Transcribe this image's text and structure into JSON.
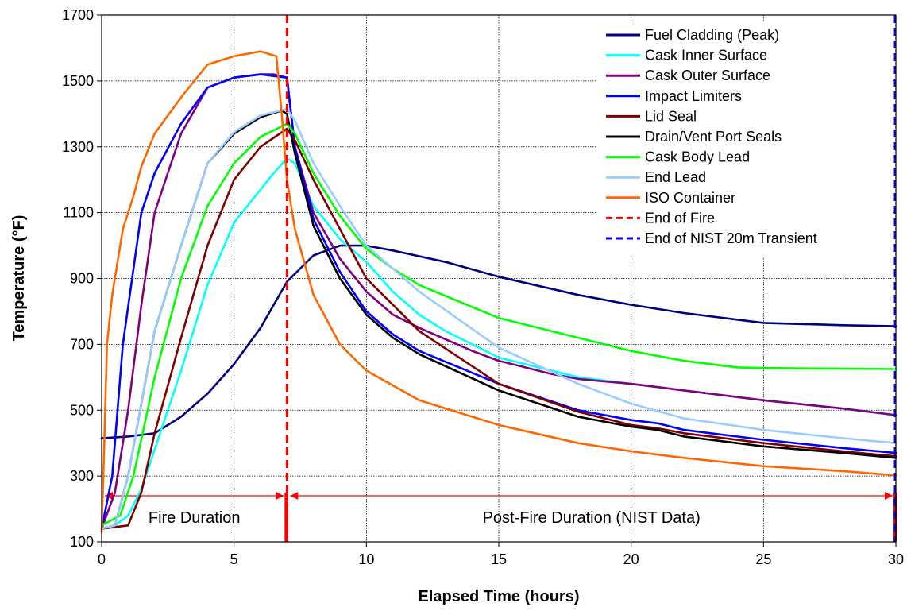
{
  "chart_data": {
    "type": "line",
    "xlabel": "Elapsed Time (hours)",
    "ylabel": "Temperature (°F)",
    "xlim": [
      0,
      30
    ],
    "ylim": [
      100,
      1700
    ],
    "xticks": [
      0,
      5,
      10,
      15,
      20,
      25,
      30
    ],
    "yticks": [
      100,
      300,
      500,
      700,
      900,
      1100,
      1300,
      1500,
      1700
    ],
    "grid": true,
    "legend_position": "top-right",
    "series": [
      {
        "name": "Fuel Cladding (Peak)",
        "color": "#000080",
        "dash": false,
        "points": [
          [
            0,
            415
          ],
          [
            1,
            420
          ],
          [
            2,
            430
          ],
          [
            3,
            480
          ],
          [
            4,
            550
          ],
          [
            5,
            640
          ],
          [
            6,
            750
          ],
          [
            7,
            890
          ],
          [
            8,
            970
          ],
          [
            9,
            1000
          ],
          [
            10,
            1000
          ],
          [
            11,
            985
          ],
          [
            13,
            950
          ],
          [
            15,
            905
          ],
          [
            18,
            850
          ],
          [
            20,
            820
          ],
          [
            22,
            795
          ],
          [
            25,
            765
          ],
          [
            28,
            758
          ],
          [
            30,
            755
          ]
        ]
      },
      {
        "name": "Cask Inner Surface",
        "color": "#00ffff",
        "dash": false,
        "points": [
          [
            0,
            140
          ],
          [
            0.5,
            150
          ],
          [
            1,
            180
          ],
          [
            1.5,
            260
          ],
          [
            2,
            380
          ],
          [
            3,
            620
          ],
          [
            4,
            880
          ],
          [
            5,
            1070
          ],
          [
            6,
            1170
          ],
          [
            6.5,
            1220
          ],
          [
            7,
            1265
          ],
          [
            7.3,
            1250
          ],
          [
            8,
            1120
          ],
          [
            9,
            1020
          ],
          [
            10,
            950
          ],
          [
            11,
            860
          ],
          [
            12,
            790
          ],
          [
            13,
            740
          ],
          [
            15,
            660
          ],
          [
            18,
            600
          ],
          [
            20,
            580
          ],
          [
            21,
            570
          ],
          [
            22,
            560
          ],
          [
            25,
            530
          ],
          [
            28,
            505
          ],
          [
            30,
            485
          ]
        ]
      },
      {
        "name": "Cask Outer Surface",
        "color": "#800080",
        "dash": false,
        "points": [
          [
            0,
            140
          ],
          [
            0.5,
            250
          ],
          [
            1,
            500
          ],
          [
            1.5,
            820
          ],
          [
            2,
            1100
          ],
          [
            2.5,
            1220
          ],
          [
            3,
            1340
          ],
          [
            4,
            1480
          ],
          [
            5,
            1510
          ],
          [
            6,
            1520
          ],
          [
            6.5,
            1520
          ],
          [
            7,
            1510
          ],
          [
            7.3,
            1300
          ],
          [
            8,
            1100
          ],
          [
            9,
            960
          ],
          [
            10,
            860
          ],
          [
            11,
            790
          ],
          [
            12,
            750
          ],
          [
            14,
            680
          ],
          [
            15,
            650
          ],
          [
            17,
            610
          ],
          [
            18,
            595
          ],
          [
            20,
            580
          ],
          [
            21,
            570
          ],
          [
            22,
            560
          ],
          [
            25,
            530
          ],
          [
            28,
            505
          ],
          [
            30,
            485
          ]
        ]
      },
      {
        "name": "Impact Limiters",
        "color": "#0000ff",
        "dash": false,
        "points": [
          [
            0,
            140
          ],
          [
            0.4,
            300
          ],
          [
            0.8,
            700
          ],
          [
            1.5,
            1100
          ],
          [
            2,
            1220
          ],
          [
            3,
            1370
          ],
          [
            4,
            1480
          ],
          [
            5,
            1510
          ],
          [
            6,
            1520
          ],
          [
            6.5,
            1515
          ],
          [
            7,
            1510
          ],
          [
            7.3,
            1300
          ],
          [
            8,
            1080
          ],
          [
            9,
            920
          ],
          [
            10,
            800
          ],
          [
            11,
            730
          ],
          [
            12,
            680
          ],
          [
            15,
            580
          ],
          [
            18,
            500
          ],
          [
            20,
            470
          ],
          [
            21,
            460
          ],
          [
            22,
            440
          ],
          [
            25,
            410
          ],
          [
            28,
            385
          ],
          [
            30,
            370
          ]
        ]
      },
      {
        "name": "Lid Seal",
        "color": "#800000",
        "dash": false,
        "points": [
          [
            0,
            140
          ],
          [
            1,
            150
          ],
          [
            1.5,
            250
          ],
          [
            2,
            430
          ],
          [
            3,
            720
          ],
          [
            4,
            1000
          ],
          [
            5,
            1200
          ],
          [
            6,
            1300
          ],
          [
            7,
            1355
          ],
          [
            7.3,
            1320
          ],
          [
            8,
            1200
          ],
          [
            9,
            1050
          ],
          [
            10,
            900
          ],
          [
            11,
            820
          ],
          [
            12,
            740
          ],
          [
            15,
            580
          ],
          [
            18,
            495
          ],
          [
            20,
            455
          ],
          [
            21,
            445
          ],
          [
            22,
            430
          ],
          [
            25,
            400
          ],
          [
            28,
            375
          ],
          [
            30,
            360
          ]
        ]
      },
      {
        "name": "Drain/Vent Port Seals",
        "color": "#000000",
        "dash": false,
        "points": [
          [
            0,
            140
          ],
          [
            0.5,
            150
          ],
          [
            1,
            300
          ],
          [
            1.5,
            520
          ],
          [
            2,
            740
          ],
          [
            3,
            1000
          ],
          [
            4,
            1250
          ],
          [
            5,
            1340
          ],
          [
            6,
            1390
          ],
          [
            6.8,
            1410
          ],
          [
            7,
            1400
          ],
          [
            7.3,
            1280
          ],
          [
            8,
            1060
          ],
          [
            9,
            900
          ],
          [
            10,
            790
          ],
          [
            11,
            720
          ],
          [
            12,
            670
          ],
          [
            15,
            560
          ],
          [
            18,
            480
          ],
          [
            20,
            450
          ],
          [
            21,
            440
          ],
          [
            22,
            420
          ],
          [
            25,
            390
          ],
          [
            28,
            370
          ],
          [
            30,
            355
          ]
        ]
      },
      {
        "name": "Cask Body Lead",
        "color": "#00ff00",
        "dash": false,
        "points": [
          [
            0,
            150
          ],
          [
            0.7,
            180
          ],
          [
            1.2,
            300
          ],
          [
            2,
            600
          ],
          [
            3,
            900
          ],
          [
            4,
            1120
          ],
          [
            5,
            1250
          ],
          [
            6,
            1330
          ],
          [
            7,
            1370
          ],
          [
            7.3,
            1340
          ],
          [
            8,
            1220
          ],
          [
            9,
            1090
          ],
          [
            10,
            990
          ],
          [
            11,
            930
          ],
          [
            12,
            880
          ],
          [
            15,
            780
          ],
          [
            18,
            720
          ],
          [
            20,
            680
          ],
          [
            22,
            650
          ],
          [
            24,
            630
          ],
          [
            25,
            628
          ],
          [
            28,
            626
          ],
          [
            30,
            625
          ]
        ]
      },
      {
        "name": "End Lead",
        "color": "#99ccff",
        "dash": false,
        "points": [
          [
            0,
            140
          ],
          [
            0.5,
            150
          ],
          [
            1,
            300
          ],
          [
            1.5,
            520
          ],
          [
            2,
            740
          ],
          [
            3,
            1000
          ],
          [
            4,
            1250
          ],
          [
            5,
            1345
          ],
          [
            6,
            1395
          ],
          [
            7,
            1415
          ],
          [
            7.3,
            1380
          ],
          [
            8,
            1250
          ],
          [
            9,
            1120
          ],
          [
            10,
            1000
          ],
          [
            11,
            930
          ],
          [
            12,
            860
          ],
          [
            15,
            690
          ],
          [
            18,
            580
          ],
          [
            20,
            520
          ],
          [
            22,
            475
          ],
          [
            25,
            440
          ],
          [
            28,
            415
          ],
          [
            30,
            400
          ]
        ]
      },
      {
        "name": "ISO Container",
        "color": "#ff6600",
        "dash": false,
        "points": [
          [
            0,
            130
          ],
          [
            0.1,
            400
          ],
          [
            0.2,
            700
          ],
          [
            0.4,
            850
          ],
          [
            0.8,
            1050
          ],
          [
            1.2,
            1150
          ],
          [
            1.5,
            1240
          ],
          [
            2,
            1340
          ],
          [
            3,
            1450
          ],
          [
            4,
            1550
          ],
          [
            5,
            1575
          ],
          [
            6,
            1590
          ],
          [
            6.4,
            1580
          ],
          [
            6.6,
            1575
          ],
          [
            6.8,
            1400
          ],
          [
            7,
            1200
          ],
          [
            7.3,
            1050
          ],
          [
            8,
            850
          ],
          [
            9,
            700
          ],
          [
            10,
            620
          ],
          [
            12,
            530
          ],
          [
            15,
            455
          ],
          [
            18,
            400
          ],
          [
            20,
            375
          ],
          [
            22,
            355
          ],
          [
            25,
            330
          ],
          [
            28,
            315
          ],
          [
            30,
            302
          ]
        ]
      }
    ],
    "vlines": [
      {
        "name": "End of Fire",
        "x": 7.0,
        "color": "#ff0000",
        "dash": true
      },
      {
        "name": "End of NIST 20m Transient",
        "x": 30.0,
        "color": "#0000ff",
        "dash": true
      }
    ],
    "annotations": [
      {
        "text": "Fire Duration",
        "x_from": 0.0,
        "x_to": 7.0,
        "y": 240
      },
      {
        "text": "Post-Fire Duration (NIST Data)",
        "x_from": 7.0,
        "x_to": 30.0,
        "y": 240
      }
    ],
    "annotation_color": "#ff0000"
  }
}
